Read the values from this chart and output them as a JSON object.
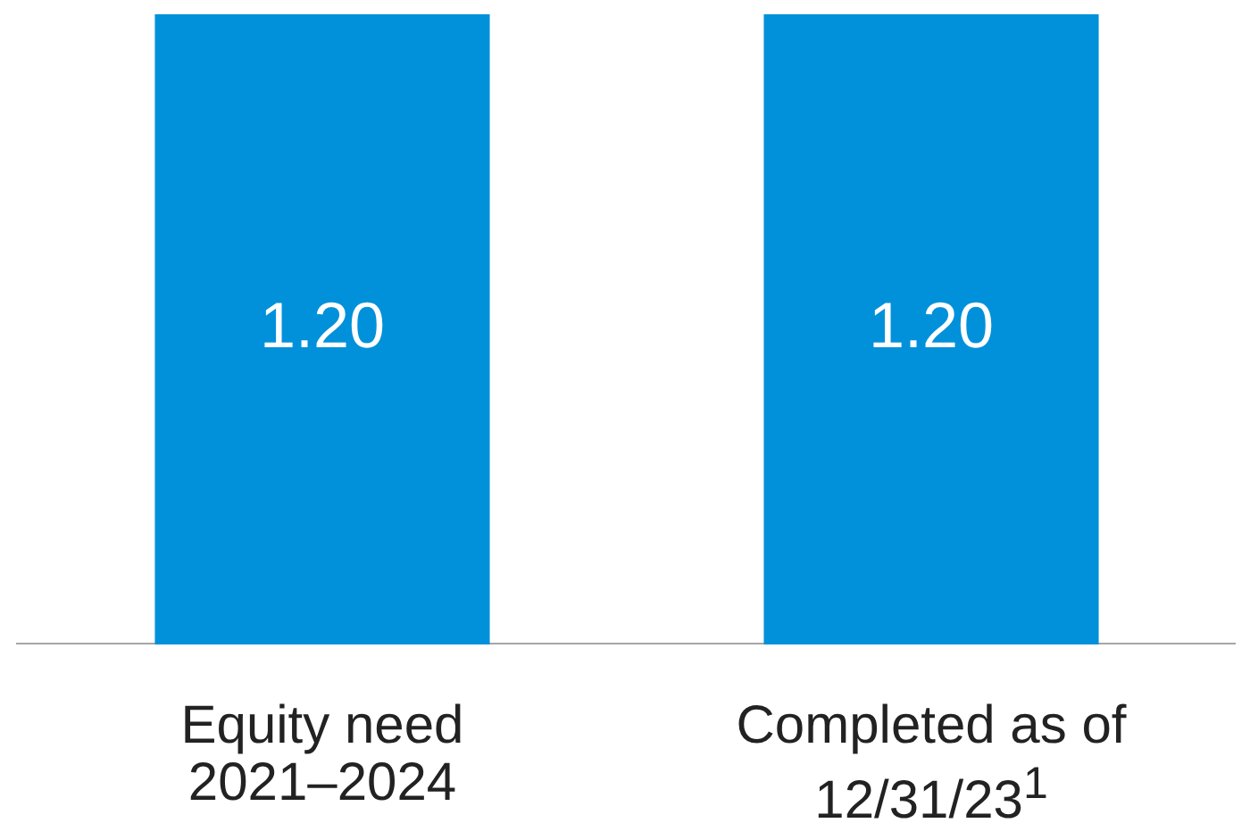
{
  "chart_data": {
    "type": "bar",
    "categories": [
      "Equity need 2021–2024",
      "Completed as of 12/31/23$^{1}$"
    ],
    "values": [
      1.2,
      1.2
    ],
    "value_labels": [
      "1.20",
      "1.20"
    ],
    "color": "#0091da"
  }
}
